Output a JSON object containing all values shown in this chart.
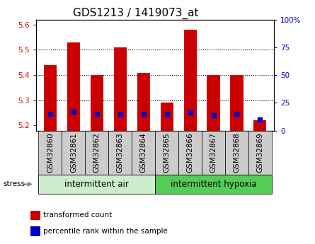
{
  "title": "GDS1213 / 1419073_at",
  "samples": [
    "GSM32860",
    "GSM32861",
    "GSM32862",
    "GSM32863",
    "GSM32864",
    "GSM32865",
    "GSM32866",
    "GSM32867",
    "GSM32868",
    "GSM32869"
  ],
  "transformed_count": [
    5.44,
    5.53,
    5.4,
    5.51,
    5.41,
    5.29,
    5.58,
    5.4,
    5.4,
    5.22
  ],
  "percentile_rank": [
    15,
    17,
    15,
    15,
    15,
    15,
    16,
    14,
    15,
    10
  ],
  "ylim_left": [
    5.18,
    5.62
  ],
  "ylim_right": [
    0,
    100
  ],
  "yticks_left": [
    5.2,
    5.3,
    5.4,
    5.5,
    5.6
  ],
  "yticks_right": [
    0,
    25,
    50,
    75,
    100
  ],
  "bar_color_red": "#cc0000",
  "bar_color_blue": "#0000cc",
  "bar_bottom": 5.18,
  "group1_label": "intermittent air",
  "group2_label": "intermittent hypoxia",
  "group1_color": "#cceecc",
  "group2_color": "#55cc55",
  "stress_label": "stress",
  "legend1": "transformed count",
  "legend2": "percentile rank within the sample",
  "tick_label_bg": "#cccccc",
  "title_fontsize": 11,
  "tick_fontsize": 7.5,
  "group_fontsize": 8.5
}
